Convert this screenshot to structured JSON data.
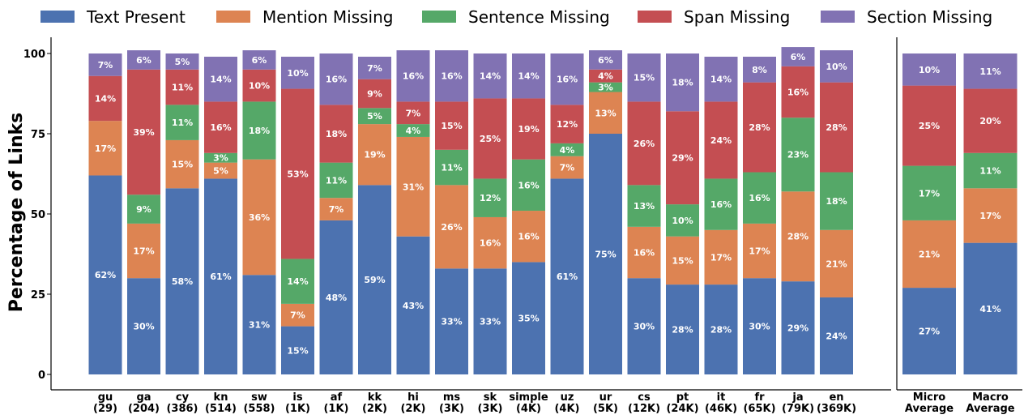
{
  "chart_data": {
    "type": "bar",
    "stacked": true,
    "ylabel": "Percentage of Links",
    "ylim": [
      0,
      100
    ],
    "yticks": [
      0,
      25,
      50,
      75,
      100
    ],
    "legend_position": "top",
    "series": [
      {
        "name": "Text Present",
        "color": "#4c72b0"
      },
      {
        "name": "Mention Missing",
        "color": "#dd8452"
      },
      {
        "name": "Sentence Missing",
        "color": "#55a868"
      },
      {
        "name": "Span Missing",
        "color": "#c44e52"
      },
      {
        "name": "Section Missing",
        "color": "#8172b3"
      }
    ],
    "panels": [
      {
        "name": "languages",
        "categories": [
          {
            "label": "gu",
            "count": "(29)",
            "values": [
              62,
              17,
              0,
              14,
              7
            ],
            "labels": [
              "62%",
              "17%",
              "",
              "14%",
              "7%"
            ]
          },
          {
            "label": "ga",
            "count": "(204)",
            "values": [
              30,
              17,
              9,
              39,
              6
            ],
            "labels": [
              "30%",
              "17%",
              "9%",
              "39%",
              "6%"
            ]
          },
          {
            "label": "cy",
            "count": "(386)",
            "values": [
              58,
              15,
              11,
              11,
              5
            ],
            "labels": [
              "58%",
              "15%",
              "11%",
              "11%",
              "5%"
            ]
          },
          {
            "label": "kn",
            "count": "(514)",
            "values": [
              61,
              5,
              3,
              16,
              14
            ],
            "labels": [
              "61%",
              "5%",
              "3%",
              "16%",
              "14%"
            ]
          },
          {
            "label": "sw",
            "count": "(558)",
            "values": [
              31,
              36,
              18,
              10,
              6
            ],
            "labels": [
              "31%",
              "36%",
              "18%",
              "10%",
              "6%"
            ]
          },
          {
            "label": "is",
            "count": "(1K)",
            "values": [
              15,
              7,
              14,
              53,
              10
            ],
            "labels": [
              "15%",
              "7%",
              "14%",
              "53%",
              "10%"
            ]
          },
          {
            "label": "af",
            "count": "(1K)",
            "values": [
              48,
              7,
              11,
              18,
              16
            ],
            "labels": [
              "48%",
              "7%",
              "11%",
              "18%",
              "16%"
            ]
          },
          {
            "label": "kk",
            "count": "(2K)",
            "values": [
              59,
              19,
              5,
              9,
              7
            ],
            "labels": [
              "59%",
              "19%",
              "5%",
              "9%",
              "7%"
            ]
          },
          {
            "label": "hi",
            "count": "(2K)",
            "values": [
              43,
              31,
              4,
              7,
              16
            ],
            "labels": [
              "43%",
              "31%",
              "4%",
              "7%",
              "16%"
            ]
          },
          {
            "label": "ms",
            "count": "(3K)",
            "values": [
              33,
              26,
              11,
              15,
              16
            ],
            "labels": [
              "33%",
              "26%",
              "11%",
              "15%",
              "16%"
            ]
          },
          {
            "label": "sk",
            "count": "(3K)",
            "values": [
              33,
              16,
              12,
              25,
              14
            ],
            "labels": [
              "33%",
              "16%",
              "12%",
              "25%",
              "14%"
            ]
          },
          {
            "label": "simple",
            "count": "(4K)",
            "values": [
              35,
              16,
              16,
              19,
              14
            ],
            "labels": [
              "35%",
              "16%",
              "16%",
              "19%",
              "14%"
            ]
          },
          {
            "label": "uz",
            "count": "(4K)",
            "values": [
              61,
              7,
              4,
              12,
              16
            ],
            "labels": [
              "61%",
              "7%",
              "4%",
              "12%",
              "16%"
            ]
          },
          {
            "label": "ur",
            "count": "(5K)",
            "values": [
              75,
              13,
              3,
              4,
              6
            ],
            "labels": [
              "75%",
              "13%",
              "3%",
              "4%",
              "6%"
            ]
          },
          {
            "label": "cs",
            "count": "(12K)",
            "values": [
              30,
              16,
              13,
              26,
              15
            ],
            "labels": [
              "30%",
              "16%",
              "13%",
              "26%",
              "15%"
            ]
          },
          {
            "label": "pt",
            "count": "(24K)",
            "values": [
              28,
              15,
              10,
              29,
              18
            ],
            "labels": [
              "28%",
              "15%",
              "10%",
              "29%",
              "18%"
            ]
          },
          {
            "label": "it",
            "count": "(46K)",
            "values": [
              28,
              17,
              16,
              24,
              14
            ],
            "labels": [
              "28%",
              "17%",
              "16%",
              "24%",
              "14%"
            ]
          },
          {
            "label": "fr",
            "count": "(65K)",
            "values": [
              30,
              17,
              16,
              28,
              8
            ],
            "labels": [
              "30%",
              "17%",
              "16%",
              "28%",
              "8%"
            ]
          },
          {
            "label": "ja",
            "count": "(79K)",
            "values": [
              29,
              28,
              23,
              16,
              6
            ],
            "labels": [
              "29%",
              "28%",
              "23%",
              "16%",
              "6%"
            ]
          },
          {
            "label": "en",
            "count": "(369K)",
            "values": [
              24,
              21,
              18,
              28,
              10
            ],
            "labels": [
              "24%",
              "21%",
              "18%",
              "28%",
              "10%"
            ]
          }
        ]
      },
      {
        "name": "averages",
        "categories": [
          {
            "label": "Micro",
            "count": "Average",
            "values": [
              27,
              21,
              17,
              25,
              10
            ],
            "labels": [
              "27%",
              "21%",
              "17%",
              "25%",
              "10%"
            ]
          },
          {
            "label": "Macro",
            "count": "Average",
            "values": [
              41,
              17,
              11,
              20,
              11
            ],
            "labels": [
              "41%",
              "17%",
              "11%",
              "20%",
              "11%"
            ]
          }
        ]
      }
    ]
  }
}
